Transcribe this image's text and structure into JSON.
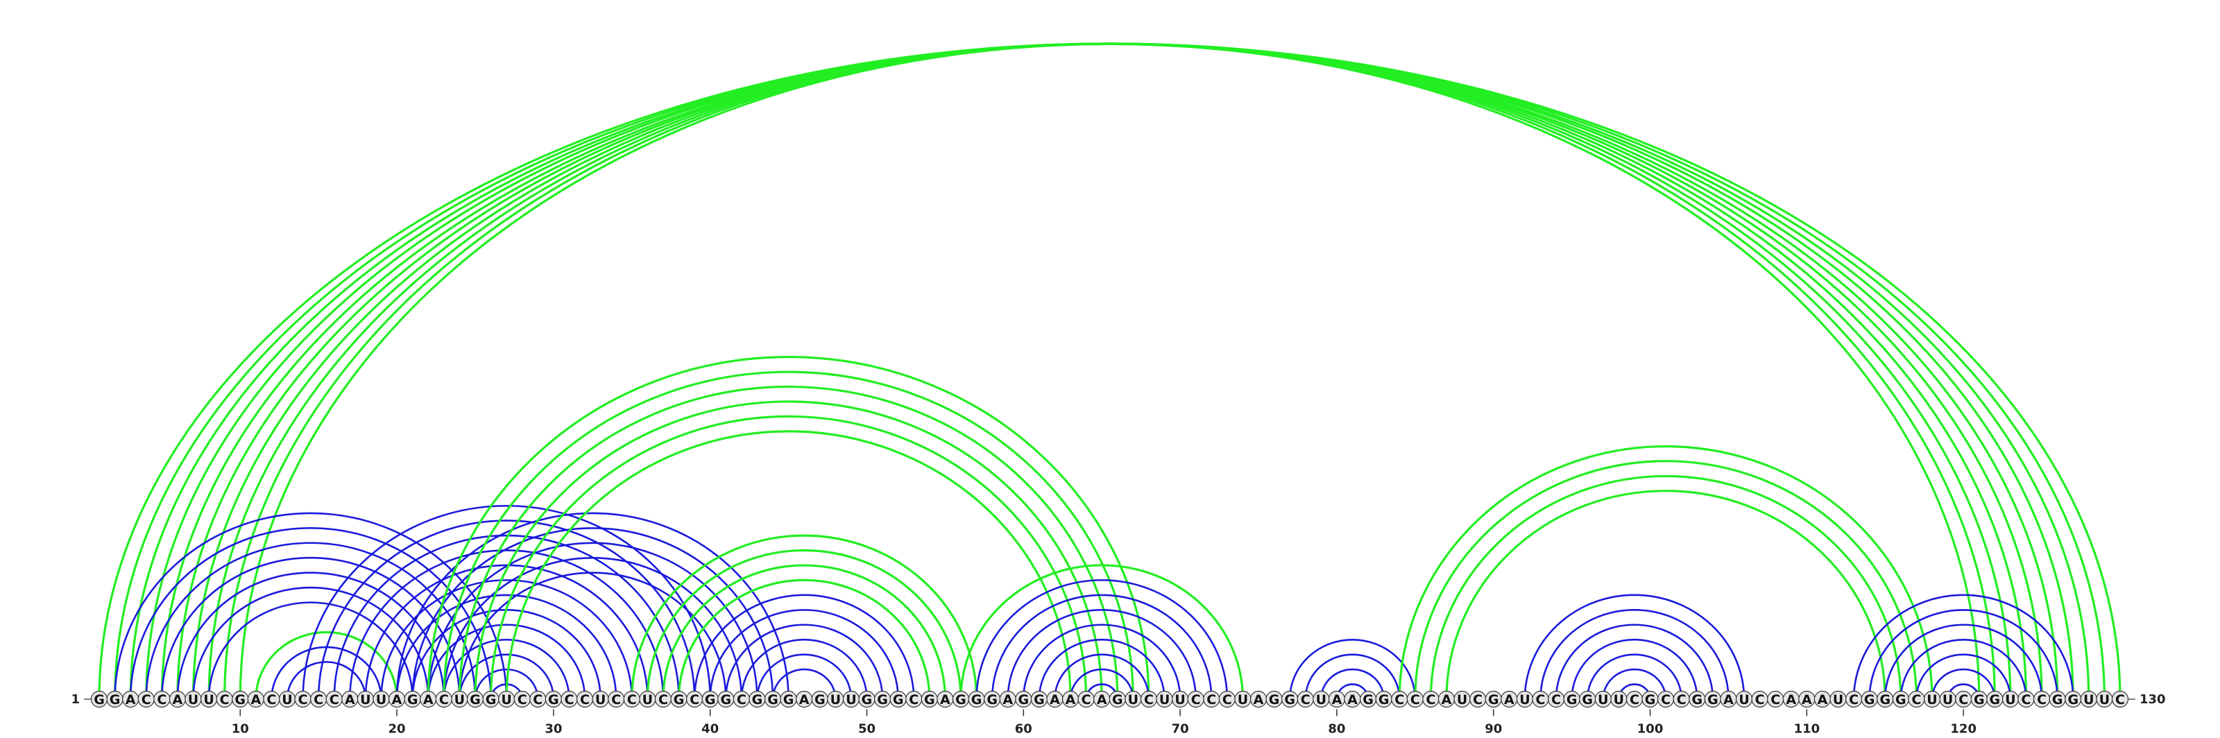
{
  "diagram": {
    "type": "rna-arc-diagram",
    "sequence": "GGACCAUUCGACUCCCAUUAGACUGGUCCGCCUCCUCGCGGCGGGAGUUGGGCGAGGGAGGAACAGUCUUCCCUAGGCUAAGGCCCAUCGAUCCGGUUCGCCGGAUCCAAAUCGGGCUUCGGUCCGGUUC",
    "start_label": "1",
    "end_label": "130",
    "ticks": [
      "10",
      "20",
      "30",
      "40",
      "50",
      "60",
      "70",
      "80",
      "90",
      "100",
      "110",
      "120"
    ],
    "colors": {
      "green": "#22ee22",
      "blue": "#1a1adc",
      "backbone": "#555555",
      "nucleotide_fill": "#e6e6e6",
      "nucleotide_stroke": "#333333"
    },
    "arcs": [
      {
        "i": 1,
        "j": 130,
        "color": "green"
      },
      {
        "i": 2,
        "j": 129,
        "color": "green"
      },
      {
        "i": 3,
        "j": 128,
        "color": "green"
      },
      {
        "i": 4,
        "j": 127,
        "color": "green"
      },
      {
        "i": 5,
        "j": 126,
        "color": "green"
      },
      {
        "i": 6,
        "j": 125,
        "color": "green"
      },
      {
        "i": 7,
        "j": 124,
        "color": "green"
      },
      {
        "i": 8,
        "j": 123,
        "color": "green"
      },
      {
        "i": 9,
        "j": 122,
        "color": "green"
      },
      {
        "i": 10,
        "j": 121,
        "color": "green"
      },
      {
        "i": 2,
        "j": 27,
        "color": "blue"
      },
      {
        "i": 3,
        "j": 26,
        "color": "blue"
      },
      {
        "i": 4,
        "j": 25,
        "color": "blue"
      },
      {
        "i": 5,
        "j": 24,
        "color": "blue"
      },
      {
        "i": 6,
        "j": 23,
        "color": "blue"
      },
      {
        "i": 7,
        "j": 22,
        "color": "blue"
      },
      {
        "i": 8,
        "j": 21,
        "color": "blue"
      },
      {
        "i": 11,
        "j": 20,
        "color": "green"
      },
      {
        "i": 12,
        "j": 19,
        "color": "blue"
      },
      {
        "i": 13,
        "j": 18,
        "color": "blue"
      },
      {
        "i": 14,
        "j": 40,
        "color": "blue"
      },
      {
        "i": 15,
        "j": 39,
        "color": "blue"
      },
      {
        "i": 16,
        "j": 38,
        "color": "blue"
      },
      {
        "i": 17,
        "j": 37,
        "color": "blue"
      },
      {
        "i": 18,
        "j": 36,
        "color": "blue"
      },
      {
        "i": 19,
        "j": 35,
        "color": "blue"
      },
      {
        "i": 20,
        "j": 34,
        "color": "blue"
      },
      {
        "i": 21,
        "j": 33,
        "color": "blue"
      },
      {
        "i": 22,
        "j": 32,
        "color": "blue"
      },
      {
        "i": 23,
        "j": 31,
        "color": "blue"
      },
      {
        "i": 24,
        "j": 30,
        "color": "blue"
      },
      {
        "i": 25,
        "j": 29,
        "color": "blue"
      },
      {
        "i": 26,
        "j": 28,
        "color": "blue"
      },
      {
        "i": 20,
        "j": 45,
        "color": "blue"
      },
      {
        "i": 21,
        "j": 44,
        "color": "blue"
      },
      {
        "i": 22,
        "j": 43,
        "color": "blue"
      },
      {
        "i": 23,
        "j": 42,
        "color": "blue"
      },
      {
        "i": 24,
        "j": 41,
        "color": "blue"
      },
      {
        "i": 22,
        "j": 68,
        "color": "green"
      },
      {
        "i": 23,
        "j": 67,
        "color": "green"
      },
      {
        "i": 24,
        "j": 66,
        "color": "green"
      },
      {
        "i": 25,
        "j": 65,
        "color": "green"
      },
      {
        "i": 26,
        "j": 64,
        "color": "green"
      },
      {
        "i": 27,
        "j": 63,
        "color": "green"
      },
      {
        "i": 35,
        "j": 57,
        "color": "green"
      },
      {
        "i": 36,
        "j": 56,
        "color": "green"
      },
      {
        "i": 37,
        "j": 55,
        "color": "green"
      },
      {
        "i": 38,
        "j": 54,
        "color": "green"
      },
      {
        "i": 39,
        "j": 53,
        "color": "blue"
      },
      {
        "i": 40,
        "j": 52,
        "color": "blue"
      },
      {
        "i": 41,
        "j": 51,
        "color": "blue"
      },
      {
        "i": 42,
        "j": 50,
        "color": "blue"
      },
      {
        "i": 43,
        "j": 49,
        "color": "blue"
      },
      {
        "i": 44,
        "j": 48,
        "color": "blue"
      },
      {
        "i": 56,
        "j": 74,
        "color": "green"
      },
      {
        "i": 57,
        "j": 73,
        "color": "blue"
      },
      {
        "i": 58,
        "j": 72,
        "color": "blue"
      },
      {
        "i": 59,
        "j": 71,
        "color": "blue"
      },
      {
        "i": 60,
        "j": 70,
        "color": "blue"
      },
      {
        "i": 61,
        "j": 69,
        "color": "blue"
      },
      {
        "i": 62,
        "j": 68,
        "color": "blue"
      },
      {
        "i": 63,
        "j": 67,
        "color": "blue"
      },
      {
        "i": 64,
        "j": 66,
        "color": "blue"
      },
      {
        "i": 77,
        "j": 85,
        "color": "blue"
      },
      {
        "i": 78,
        "j": 84,
        "color": "blue"
      },
      {
        "i": 79,
        "j": 83,
        "color": "blue"
      },
      {
        "i": 80,
        "j": 82,
        "color": "blue"
      },
      {
        "i": 84,
        "j": 118,
        "color": "green"
      },
      {
        "i": 85,
        "j": 117,
        "color": "green"
      },
      {
        "i": 86,
        "j": 116,
        "color": "green"
      },
      {
        "i": 87,
        "j": 115,
        "color": "green"
      },
      {
        "i": 92,
        "j": 106,
        "color": "blue"
      },
      {
        "i": 93,
        "j": 105,
        "color": "blue"
      },
      {
        "i": 94,
        "j": 104,
        "color": "blue"
      },
      {
        "i": 95,
        "j": 103,
        "color": "blue"
      },
      {
        "i": 96,
        "j": 102,
        "color": "blue"
      },
      {
        "i": 97,
        "j": 101,
        "color": "blue"
      },
      {
        "i": 98,
        "j": 100,
        "color": "blue"
      },
      {
        "i": 113,
        "j": 127,
        "color": "blue"
      },
      {
        "i": 114,
        "j": 126,
        "color": "blue"
      },
      {
        "i": 115,
        "j": 125,
        "color": "blue"
      },
      {
        "i": 116,
        "j": 124,
        "color": "blue"
      },
      {
        "i": 117,
        "j": 123,
        "color": "blue"
      },
      {
        "i": 118,
        "j": 122,
        "color": "blue"
      },
      {
        "i": 119,
        "j": 121,
        "color": "blue"
      }
    ]
  }
}
